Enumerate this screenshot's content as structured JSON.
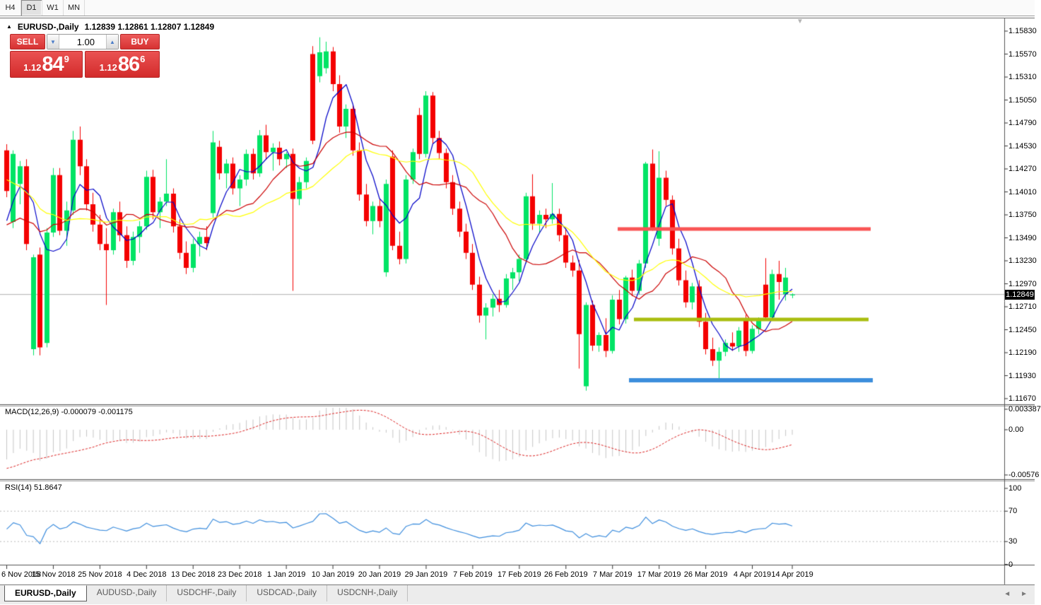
{
  "toolbar": {
    "timeframes": [
      {
        "label": "H4",
        "active": false
      },
      {
        "label": "D1",
        "active": true
      },
      {
        "label": "W1",
        "active": false
      },
      {
        "label": "MN",
        "active": false
      }
    ]
  },
  "header": {
    "symbol": "EURUSD-,Daily",
    "ohlc": "1.12839 1.12861 1.12807 1.12849",
    "collapse_marker": "▼"
  },
  "trade_panel": {
    "sell_label": "SELL",
    "buy_label": "BUY",
    "volume": "1.00",
    "sell_quote": {
      "small": "1.12",
      "big": "84",
      "sup": "9"
    },
    "buy_quote": {
      "small": "1.12",
      "big": "86",
      "sup": "6"
    }
  },
  "price_axis": {
    "labels": [
      "1.15830",
      "1.15570",
      "1.15310",
      "1.15050",
      "1.14790",
      "1.14530",
      "1.14270",
      "1.14010",
      "1.13750",
      "1.13490",
      "1.13230",
      "1.12970",
      "1.12710",
      "1.12450",
      "1.12190",
      "1.11930",
      "1.11670"
    ],
    "current_price": "1.12849"
  },
  "macd_panel": {
    "label": "MACD(12,26,9) -0.000079 -0.001175",
    "axis_labels": [
      "0.003387",
      "0.00",
      "-0.00576"
    ]
  },
  "rsi_panel": {
    "label": "RSI(14) 51.8647",
    "axis_labels": [
      "100",
      "70",
      "30",
      "0"
    ],
    "levels": [
      70,
      30
    ]
  },
  "date_axis": {
    "labels": [
      "6 Nov 2018",
      "15 Nov 2018",
      "25 Nov 2018",
      "4 Dec 2018",
      "13 Dec 2018",
      "23 Dec 2018",
      "1 Jan 2019",
      "10 Jan 2019",
      "20 Jan 2019",
      "29 Jan 2019",
      "7 Feb 2019",
      "17 Feb 2019",
      "26 Feb 2019",
      "7 Mar 2019",
      "17 Mar 2019",
      "26 Mar 2019",
      "4 Apr 2019",
      "14 Apr 2019"
    ]
  },
  "tabs": {
    "items": [
      {
        "label": "EURUSD-,Daily",
        "active": true
      },
      {
        "label": "AUDUSD-,Daily",
        "active": false
      },
      {
        "label": "USDCHF-,Daily",
        "active": false
      },
      {
        "label": "USDCAD-,Daily",
        "active": false
      },
      {
        "label": "USDCNH-,Daily",
        "active": false
      }
    ],
    "scroll_left": "◄",
    "scroll_right": "►"
  },
  "colors": {
    "candle_up": "#00E465",
    "candle_down": "#F40000",
    "ma_fast": "#0000C8",
    "ma_mid": "#CC0000",
    "ma_slow": "#FFFF00",
    "hline_red": "#F95454",
    "hline_olive": "#A9BD0F",
    "hline_blue": "#3C8EDC",
    "macd_hist": "#C6C6C6",
    "macd_signal": "#DD2222",
    "rsi_line": "#3E8EDE",
    "current_line": "#B0B0B0",
    "panel_red": "#D63232"
  },
  "chart_data": {
    "type": "candlestick",
    "symbol": "EURUSD-",
    "timeframe": "Daily",
    "ylim": [
      1.1167,
      1.1583
    ],
    "current_price": 1.12849,
    "hlines": [
      {
        "price": 1.1359,
        "x1": 874,
        "x2": 1232,
        "thickness": 5,
        "color": "#F95454"
      },
      {
        "price": 1.12566,
        "x1": 897,
        "x2": 1229,
        "thickness": 5,
        "color": "#A9BD0F"
      },
      {
        "price": 1.11878,
        "x1": 890,
        "x2": 1235,
        "thickness": 6,
        "color": "#3C8EDC"
      }
    ],
    "macd_ylim": [
      -0.00576,
      0.003387
    ],
    "rsi_current": 51.8647,
    "seed_closes": [
      1.156,
      1.1548,
      1.1535,
      1.154,
      1.1522,
      1.1506,
      1.149,
      1.1496,
      1.1478,
      1.146,
      1.1444,
      1.145,
      1.143,
      1.141,
      1.1395,
      1.138,
      1.1385,
      1.1365,
      1.1345,
      1.133,
      1.1338,
      1.1348,
      1.133,
      1.135,
      1.137,
      1.139
    ],
    "candles": [
      [
        1.1448,
        1.1455,
        1.1395,
        1.1402
      ],
      [
        1.1367,
        1.1448,
        1.136,
        1.1444
      ],
      [
        1.141,
        1.1436,
        1.1387,
        1.143
      ],
      [
        1.143,
        1.1438,
        1.1335,
        1.1342
      ],
      [
        1.1223,
        1.133,
        1.1216,
        1.1327
      ],
      [
        1.133,
        1.1338,
        1.1216,
        1.1225
      ],
      [
        1.123,
        1.136,
        1.1225,
        1.1355
      ],
      [
        1.1355,
        1.1428,
        1.135,
        1.142
      ],
      [
        1.142,
        1.1428,
        1.1352,
        1.1357
      ],
      [
        1.1357,
        1.139,
        1.134,
        1.138
      ],
      [
        1.138,
        1.147,
        1.1375,
        1.146
      ],
      [
        1.146,
        1.1475,
        1.142,
        1.143
      ],
      [
        1.143,
        1.1438,
        1.138,
        1.1387
      ],
      [
        1.1387,
        1.14,
        1.1356,
        1.1364
      ],
      [
        1.1364,
        1.1375,
        1.1335,
        1.1342
      ],
      [
        1.1342,
        1.136,
        1.1273,
        1.1335
      ],
      [
        1.1335,
        1.1382,
        1.133,
        1.1378
      ],
      [
        1.1378,
        1.139,
        1.1345,
        1.1352
      ],
      [
        1.1352,
        1.1362,
        1.1315,
        1.1323
      ],
      [
        1.1323,
        1.1356,
        1.1318,
        1.135
      ],
      [
        1.135,
        1.1368,
        1.1332,
        1.1362
      ],
      [
        1.1362,
        1.1425,
        1.1358,
        1.1418
      ],
      [
        1.1418,
        1.1426,
        1.137,
        1.1378
      ],
      [
        1.1378,
        1.1395,
        1.136,
        1.139
      ],
      [
        1.139,
        1.1438,
        1.1385,
        1.1399
      ],
      [
        1.1399,
        1.1405,
        1.1355,
        1.1362
      ],
      [
        1.1362,
        1.137,
        1.1325,
        1.1332
      ],
      [
        1.1332,
        1.1345,
        1.1308,
        1.1315
      ],
      [
        1.1315,
        1.1348,
        1.131,
        1.1342
      ],
      [
        1.1342,
        1.1356,
        1.1328,
        1.135
      ],
      [
        1.135,
        1.1362,
        1.1335,
        1.1343
      ],
      [
        1.1377,
        1.147,
        1.1372,
        1.1457
      ],
      [
        1.1452,
        1.1459,
        1.1415,
        1.1422
      ],
      [
        1.1422,
        1.1438,
        1.1405,
        1.1433
      ],
      [
        1.1433,
        1.144,
        1.1398,
        1.1405
      ],
      [
        1.1405,
        1.142,
        1.1385,
        1.1415
      ],
      [
        1.1415,
        1.1449,
        1.1408,
        1.1444
      ],
      [
        1.1444,
        1.145,
        1.1415,
        1.1422
      ],
      [
        1.1422,
        1.1471,
        1.1418,
        1.1465
      ],
      [
        1.1465,
        1.1477,
        1.1438,
        1.1446
      ],
      [
        1.1446,
        1.1456,
        1.1425,
        1.1451
      ],
      [
        1.1451,
        1.1458,
        1.1431,
        1.1438
      ],
      [
        1.1438,
        1.1446,
        1.1428,
        1.1444
      ],
      [
        1.1444,
        1.145,
        1.1289,
        1.1393
      ],
      [
        1.1393,
        1.1418,
        1.1386,
        1.1412
      ],
      [
        1.1412,
        1.144,
        1.1405,
        1.1436
      ],
      [
        1.1557,
        1.1566,
        1.1455,
        1.1459
      ],
      [
        1.1532,
        1.1576,
        1.1525,
        1.1559
      ],
      [
        1.1541,
        1.1571,
        1.1535,
        1.156
      ],
      [
        1.156,
        1.1565,
        1.1515,
        1.1523
      ],
      [
        1.1523,
        1.1533,
        1.1468,
        1.1475
      ],
      [
        1.1475,
        1.15,
        1.1462,
        1.1495
      ],
      [
        1.1495,
        1.15,
        1.1442,
        1.1448
      ],
      [
        1.1448,
        1.1457,
        1.1391,
        1.1398
      ],
      [
        1.1398,
        1.141,
        1.1362,
        1.1368
      ],
      [
        1.1368,
        1.139,
        1.1353,
        1.1385
      ],
      [
        1.1385,
        1.1393,
        1.1361,
        1.1368
      ],
      [
        1.131,
        1.1415,
        1.1305,
        1.141
      ],
      [
        1.1441,
        1.1448,
        1.1335,
        1.134
      ],
      [
        1.134,
        1.1356,
        1.1319,
        1.1325
      ],
      [
        1.1325,
        1.142,
        1.132,
        1.1415
      ],
      [
        1.1415,
        1.145,
        1.141,
        1.1446
      ],
      [
        1.1488,
        1.1496,
        1.1438,
        1.1444
      ],
      [
        1.1444,
        1.1515,
        1.144,
        1.151
      ],
      [
        1.151,
        1.1514,
        1.1455,
        1.1462
      ],
      [
        1.1462,
        1.147,
        1.1438,
        1.1445
      ],
      [
        1.1445,
        1.145,
        1.1405,
        1.1412
      ],
      [
        1.1412,
        1.142,
        1.1375,
        1.1382
      ],
      [
        1.1382,
        1.139,
        1.135,
        1.1356
      ],
      [
        1.1356,
        1.1365,
        1.1325,
        1.1332
      ],
      [
        1.1332,
        1.1342,
        1.129,
        1.1296
      ],
      [
        1.1296,
        1.1305,
        1.1253,
        1.1261
      ],
      [
        1.1261,
        1.1275,
        1.1234,
        1.127
      ],
      [
        1.127,
        1.1285,
        1.126,
        1.128
      ],
      [
        1.128,
        1.129,
        1.1265,
        1.1273
      ],
      [
        1.1273,
        1.1308,
        1.127,
        1.1303
      ],
      [
        1.1303,
        1.1315,
        1.129,
        1.131
      ],
      [
        1.131,
        1.133,
        1.13,
        1.1325
      ],
      [
        1.1325,
        1.14,
        1.132,
        1.1396
      ],
      [
        1.1396,
        1.1421,
        1.1358,
        1.1365
      ],
      [
        1.1365,
        1.138,
        1.1355,
        1.1375
      ],
      [
        1.1375,
        1.1382,
        1.136,
        1.137
      ],
      [
        1.137,
        1.1411,
        1.1365,
        1.1376
      ],
      [
        1.1376,
        1.1382,
        1.1345,
        1.1352
      ],
      [
        1.1352,
        1.136,
        1.1315,
        1.1321
      ],
      [
        1.1321,
        1.1329,
        1.1305,
        1.1312
      ],
      [
        1.1312,
        1.1324,
        1.1201,
        1.124
      ],
      [
        1.1181,
        1.1276,
        1.1176,
        1.1273
      ],
      [
        1.1273,
        1.1278,
        1.1221,
        1.1227
      ],
      [
        1.1227,
        1.1242,
        1.122,
        1.1239
      ],
      [
        1.1239,
        1.1258,
        1.1214,
        1.1221
      ],
      [
        1.1221,
        1.1284,
        1.1218,
        1.1279
      ],
      [
        1.1279,
        1.129,
        1.1251,
        1.1257
      ],
      [
        1.1257,
        1.1306,
        1.1252,
        1.1304
      ],
      [
        1.1304,
        1.1313,
        1.1283,
        1.1289
      ],
      [
        1.1289,
        1.1324,
        1.1285,
        1.132
      ],
      [
        1.132,
        1.1435,
        1.1315,
        1.1433
      ],
      [
        1.1433,
        1.1449,
        1.1357,
        1.1359
      ],
      [
        1.1348,
        1.1447,
        1.134,
        1.1417
      ],
      [
        1.1417,
        1.1425,
        1.1385,
        1.1392
      ],
      [
        1.1392,
        1.1397,
        1.133,
        1.1337
      ],
      [
        1.1337,
        1.1348,
        1.1295,
        1.1301
      ],
      [
        1.1301,
        1.1312,
        1.127,
        1.1276
      ],
      [
        1.1276,
        1.1298,
        1.1268,
        1.1294
      ],
      [
        1.1294,
        1.1301,
        1.1248,
        1.1254
      ],
      [
        1.1254,
        1.1264,
        1.1217,
        1.1223
      ],
      [
        1.1223,
        1.1236,
        1.1204,
        1.121
      ],
      [
        1.121,
        1.1225,
        1.1188,
        1.122
      ],
      [
        1.122,
        1.1234,
        1.1215,
        1.123
      ],
      [
        1.123,
        1.1242,
        1.1221,
        1.1226
      ],
      [
        1.1226,
        1.1248,
        1.122,
        1.1244
      ],
      [
        1.1256,
        1.1262,
        1.1215,
        1.1221
      ],
      [
        1.1221,
        1.125,
        1.1218,
        1.1246
      ],
      [
        1.1246,
        1.1259,
        1.124,
        1.1255
      ],
      [
        1.1296,
        1.1326,
        1.1257,
        1.1259
      ],
      [
        1.1259,
        1.1313,
        1.1255,
        1.1308
      ],
      [
        1.1308,
        1.1323,
        1.1279,
        1.1299
      ],
      [
        1.1285,
        1.1315,
        1.1278,
        1.1304
      ],
      [
        1.12839,
        1.12861,
        1.12807,
        1.12849
      ]
    ]
  }
}
